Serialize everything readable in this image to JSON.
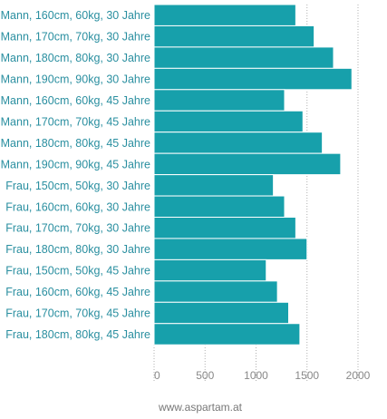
{
  "chart_data": {
    "type": "bar",
    "orientation": "horizontal",
    "categories": [
      "Mann, 160cm, 60kg, 30 Jahre",
      "Mann, 170cm, 70kg, 30 Jahre",
      "Mann, 180cm, 80kg, 30 Jahre",
      "Mann, 190cm, 90kg, 30 Jahre",
      "Mann, 160cm, 60kg, 45 Jahre",
      "Mann, 170cm, 70kg, 45 Jahre",
      "Mann, 180cm, 80kg, 45 Jahre",
      "Mann, 190cm, 90kg, 45 Jahre",
      "Frau, 150cm, 50kg, 30 Jahre",
      "Frau, 160cm, 60kg, 30 Jahre",
      "Frau, 170cm, 70kg, 30 Jahre",
      "Frau, 180cm, 80kg, 30 Jahre",
      "Frau, 150cm, 50kg, 45 Jahre",
      "Frau, 160cm, 60kg, 45 Jahre",
      "Frau, 170cm, 70kg, 45 Jahre",
      "Frau, 180cm, 80kg, 45 Jahre"
    ],
    "values": [
      1390,
      1570,
      1760,
      1940,
      1280,
      1460,
      1650,
      1830,
      1170,
      1280,
      1390,
      1500,
      1100,
      1210,
      1320,
      1430
    ],
    "xlim": [
      0,
      2000
    ],
    "xticks": [
      0,
      500,
      1000,
      1500,
      2000
    ],
    "xtick_labels": [
      "0",
      "500",
      "1000",
      "1500",
      "2000"
    ],
    "title": "",
    "xlabel": "",
    "ylabel": "",
    "grid": "vertical dotted",
    "bar_color": "#17a0ab"
  },
  "source_text": "www.aspartam.at",
  "colors": {
    "bar": "#17a0ab",
    "bar_border": "#ffffff",
    "category_text": "#2a8fa0",
    "grid": "#b0b0b0",
    "axis_text": "#888888"
  }
}
